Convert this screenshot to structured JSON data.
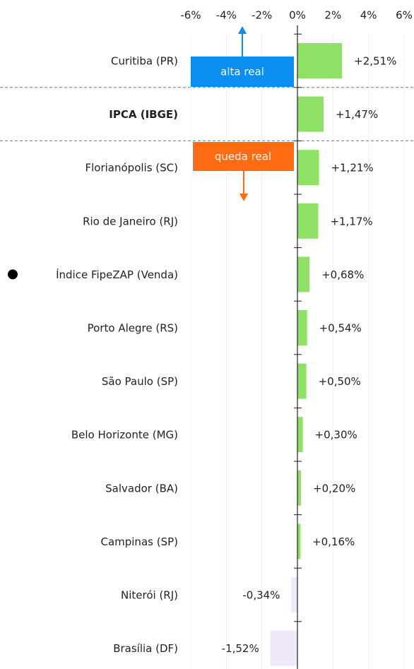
{
  "chart_data": {
    "type": "bar",
    "orientation": "horizontal",
    "categories": [
      "Curitiba (PR)",
      "IPCA (IBGE)",
      "Florianópolis (SC)",
      "Rio de Janeiro (RJ)",
      "Índice FipeZAP (Venda)",
      "Porto Alegre (RS)",
      "São Paulo (SP)",
      "Belo Horizonte (MG)",
      "Salvador (BA)",
      "Campinas (SP)",
      "Niterói (RJ)",
      "Brasília (DF)"
    ],
    "values": [
      2.51,
      1.47,
      1.21,
      1.17,
      0.68,
      0.54,
      0.5,
      0.3,
      0.2,
      0.16,
      -0.34,
      -1.52
    ],
    "value_labels": [
      "+2,51%",
      "+1,47%",
      "+1,21%",
      "+1,17%",
      "+0,68%",
      "+0,54%",
      "+0,50%",
      "+0,30%",
      "+0,20%",
      "+0,16%",
      "-0,34%",
      "-1,52%"
    ],
    "positive_color": "#8fe165",
    "negative_color": "#efe8fb",
    "xlim": [
      -6,
      6
    ],
    "xticks": [
      {
        "value": -6,
        "label": "-6%"
      },
      {
        "value": -4,
        "label": "-4%"
      },
      {
        "value": -2,
        "label": "-2%"
      },
      {
        "value": 0,
        "label": "0%"
      },
      {
        "value": 2,
        "label": "2%"
      },
      {
        "value": 4,
        "label": "4%"
      },
      {
        "value": 6,
        "label": "6%"
      }
    ],
    "grid": true,
    "annotations": [
      {
        "text": "alta real",
        "color": "#0a8ef0"
      },
      {
        "text": "queda real",
        "color": "#ff6a13"
      }
    ]
  }
}
